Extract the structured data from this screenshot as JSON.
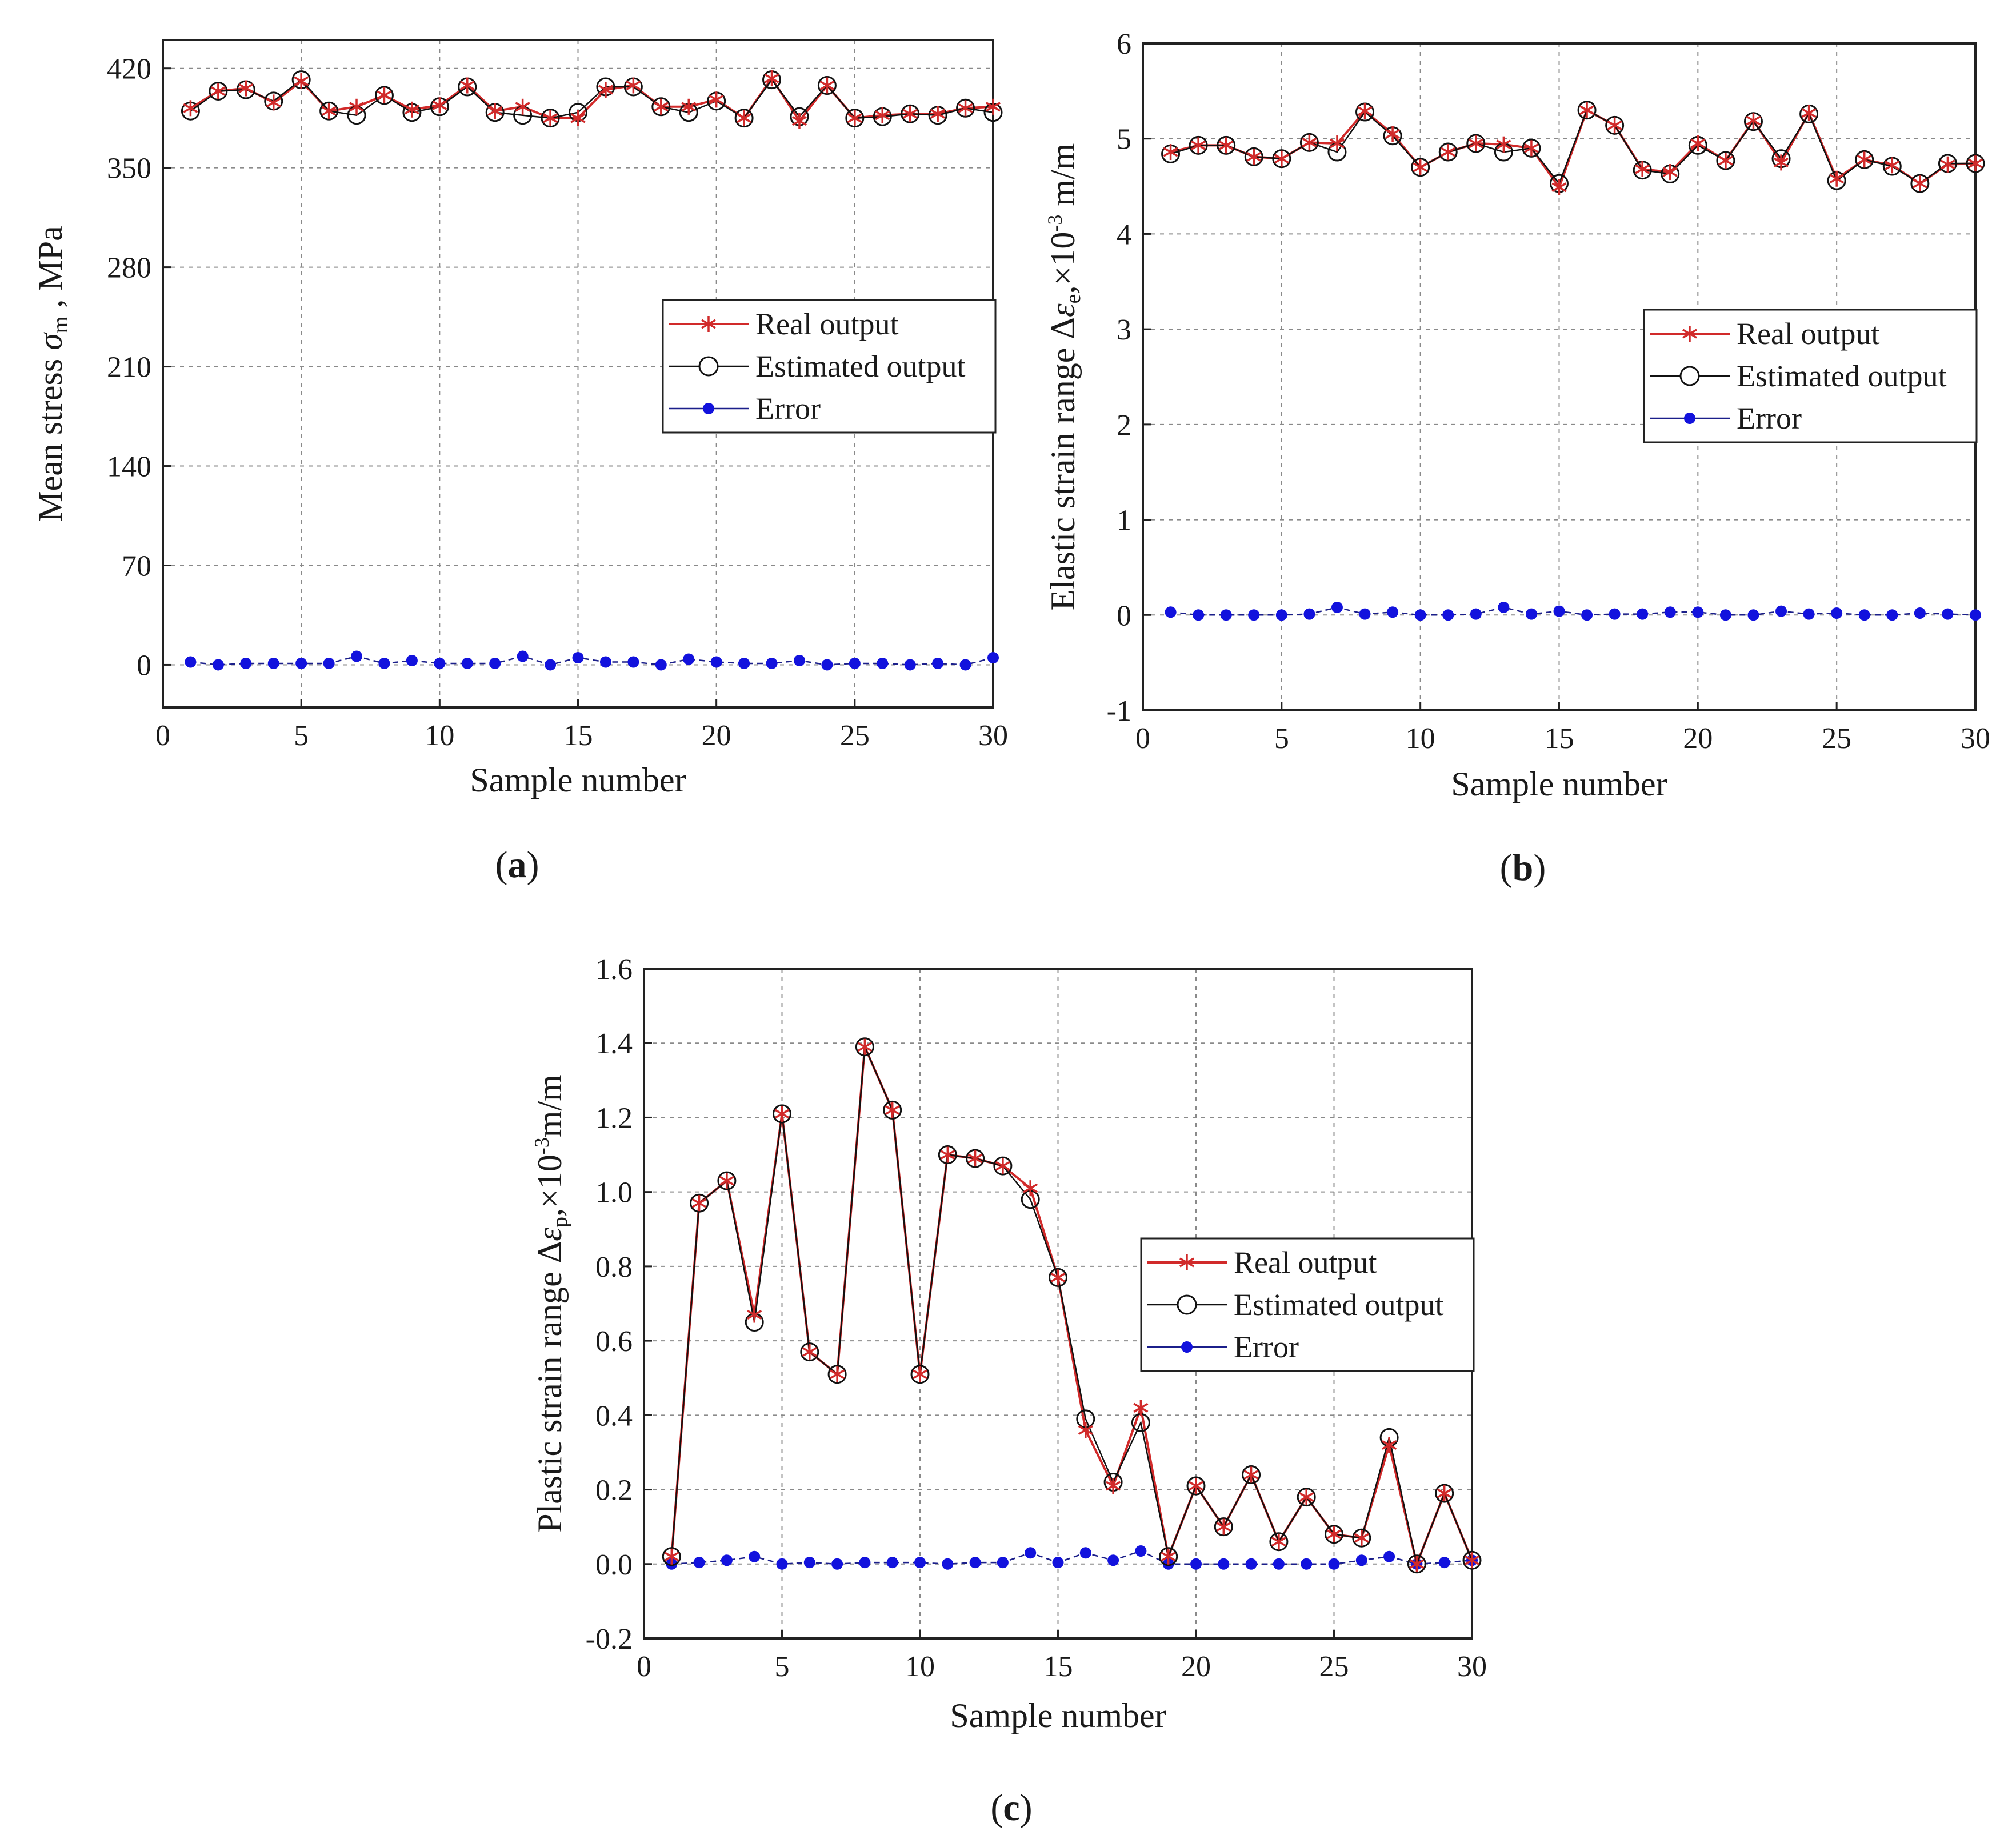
{
  "colors": {
    "real": "#d12a2a",
    "estimated": "#111111",
    "error": "#1212dd",
    "error_line": "#1b1f8a",
    "grid": "#8a8a8a"
  },
  "legend_labels": {
    "real": "Real output",
    "estimated": "Estimated output",
    "error": "Error"
  },
  "x": [
    1,
    2,
    3,
    4,
    5,
    6,
    7,
    8,
    9,
    10,
    11,
    12,
    13,
    14,
    15,
    16,
    17,
    18,
    19,
    20,
    21,
    22,
    23,
    24,
    25,
    26,
    27,
    28,
    29,
    30
  ],
  "chart_data": [
    {
      "type": "line",
      "panel_label": {
        "open": "(",
        "letter": "a",
        "close": ")"
      },
      "xlabel": "Sample number",
      "ylabel": {
        "before": "Mean stress ",
        "symbol": "σ",
        "sub": "m",
        "after": " , MPa"
      },
      "xlim": [
        0,
        30
      ],
      "ylim": [
        -30,
        440
      ],
      "xticks": [
        0,
        5,
        10,
        15,
        20,
        25,
        30
      ],
      "yticks": [
        0,
        70,
        140,
        210,
        280,
        350,
        420
      ],
      "xtick_labels": [
        "0",
        "5",
        "10",
        "15",
        "20",
        "25",
        "30"
      ],
      "ytick_labels": [
        "0",
        "70",
        "140",
        "210",
        "280",
        "350",
        "420"
      ],
      "legend_position": "right-middle",
      "series": [
        {
          "name": "Real output",
          "key": "real",
          "values": [
            392,
            404,
            406,
            396,
            411,
            390,
            393,
            401,
            391,
            394,
            408,
            390,
            393,
            385,
            385,
            405,
            408,
            393,
            393,
            398,
            385,
            413,
            383,
            408,
            385,
            387,
            388,
            388,
            392,
            393
          ]
        },
        {
          "name": "Estimated output",
          "key": "estimated",
          "values": [
            390,
            404,
            405,
            397,
            412,
            390,
            387,
            401,
            389,
            393,
            407,
            389,
            387,
            385,
            389,
            407,
            407,
            393,
            389,
            397,
            385,
            412,
            386,
            408,
            385,
            386,
            388,
            387,
            392,
            389
          ]
        },
        {
          "name": "Error",
          "key": "error",
          "values": [
            2,
            0,
            1,
            1,
            1,
            1,
            6,
            1,
            3,
            1,
            1,
            1,
            6,
            0,
            5,
            2,
            2,
            0,
            4,
            2,
            1,
            1,
            3,
            0,
            1,
            1,
            0,
            1,
            0,
            5
          ]
        }
      ]
    },
    {
      "type": "line",
      "panel_label": {
        "open": "(",
        "letter": "b",
        "close": ")"
      },
      "xlabel": "Sample number",
      "ylabel": {
        "before": "Elastic strain range Δ",
        "symbol": "ε",
        "sub": "e",
        "mid": ",×10",
        "sup": "-3",
        "after": " m/m"
      },
      "xlim": [
        0,
        30
      ],
      "ylim": [
        -1,
        6
      ],
      "xticks": [
        0,
        5,
        10,
        15,
        20,
        25,
        30
      ],
      "yticks": [
        -1,
        0,
        1,
        2,
        3,
        4,
        5,
        6
      ],
      "xtick_labels": [
        "0",
        "5",
        "10",
        "15",
        "20",
        "25",
        "30"
      ],
      "ytick_labels": [
        "-1",
        "0",
        "1",
        "2",
        "3",
        "4",
        "5",
        "6"
      ],
      "legend_position": "right-middle",
      "series": [
        {
          "name": "Real output",
          "key": "real",
          "values": [
            4.86,
            4.93,
            4.93,
            4.81,
            4.79,
            4.96,
            4.95,
            5.29,
            5.05,
            4.7,
            4.86,
            4.95,
            4.94,
            4.9,
            4.49,
            5.3,
            5.14,
            4.68,
            4.65,
            4.95,
            4.77,
            5.19,
            4.75,
            5.27,
            4.58,
            4.78,
            4.72,
            4.53,
            4.73,
            4.74
          ]
        },
        {
          "name": "Estimated output",
          "key": "estimated",
          "values": [
            4.84,
            4.93,
            4.93,
            4.81,
            4.79,
            4.96,
            4.86,
            5.28,
            5.03,
            4.7,
            4.86,
            4.95,
            4.86,
            4.9,
            4.53,
            5.3,
            5.14,
            4.67,
            4.63,
            4.93,
            4.77,
            5.18,
            4.79,
            5.26,
            4.56,
            4.78,
            4.71,
            4.53,
            4.74,
            4.74
          ]
        },
        {
          "name": "Error",
          "key": "error",
          "values": [
            0.03,
            0.0,
            0.0,
            0.0,
            0.0,
            0.01,
            0.08,
            0.01,
            0.03,
            0.0,
            0.0,
            0.01,
            0.08,
            0.01,
            0.04,
            0.0,
            0.01,
            0.01,
            0.03,
            0.03,
            0.0,
            0.0,
            0.04,
            0.01,
            0.02,
            0.0,
            0.0,
            0.02,
            0.01,
            0.0
          ]
        }
      ]
    },
    {
      "type": "line",
      "panel_label": {
        "open": "(",
        "letter": "c",
        "close": ")"
      },
      "xlabel": "Sample number",
      "ylabel": {
        "before": "Plastic strain range Δ",
        "symbol": "ε",
        "sub": "p",
        "mid": ",×10",
        "sup": "-3",
        "after": "m/m"
      },
      "xlim": [
        0,
        30
      ],
      "ylim": [
        -0.2,
        1.6
      ],
      "xticks": [
        0,
        5,
        10,
        15,
        20,
        25,
        30
      ],
      "yticks": [
        -0.2,
        0.0,
        0.2,
        0.4,
        0.6,
        0.8,
        1.0,
        1.2,
        1.4,
        1.6
      ],
      "xtick_labels": [
        "0",
        "5",
        "10",
        "15",
        "20",
        "25",
        "30"
      ],
      "ytick_labels": [
        "-0.2",
        "0.0",
        "0.2",
        "0.4",
        "0.6",
        "0.8",
        "1.0",
        "1.2",
        "1.4",
        "1.6"
      ],
      "legend_position": "right-middle",
      "series": [
        {
          "name": "Real output",
          "key": "real",
          "values": [
            0.02,
            0.97,
            1.03,
            0.67,
            1.21,
            0.57,
            0.51,
            1.39,
            1.22,
            0.51,
            1.1,
            1.09,
            1.07,
            1.01,
            0.77,
            0.36,
            0.21,
            0.42,
            0.02,
            0.21,
            0.1,
            0.24,
            0.06,
            0.18,
            0.08,
            0.07,
            0.32,
            0.0,
            0.19,
            0.01
          ]
        },
        {
          "name": "Estimated output",
          "key": "estimated",
          "values": [
            0.02,
            0.97,
            1.03,
            0.65,
            1.21,
            0.57,
            0.51,
            1.39,
            1.22,
            0.51,
            1.1,
            1.09,
            1.07,
            0.98,
            0.77,
            0.39,
            0.22,
            0.38,
            0.02,
            0.21,
            0.1,
            0.24,
            0.06,
            0.18,
            0.08,
            0.07,
            0.34,
            0.0,
            0.19,
            0.01
          ]
        },
        {
          "name": "Error",
          "key": "error",
          "values": [
            0.0,
            0.004,
            0.01,
            0.02,
            0.0,
            0.004,
            0.0,
            0.004,
            0.004,
            0.004,
            0.0,
            0.004,
            0.004,
            0.03,
            0.004,
            0.03,
            0.01,
            0.035,
            0.0,
            0.0,
            0.0,
            0.0,
            0.0,
            0.0,
            0.0,
            0.01,
            0.02,
            0.0,
            0.004,
            0.01
          ]
        }
      ]
    }
  ]
}
